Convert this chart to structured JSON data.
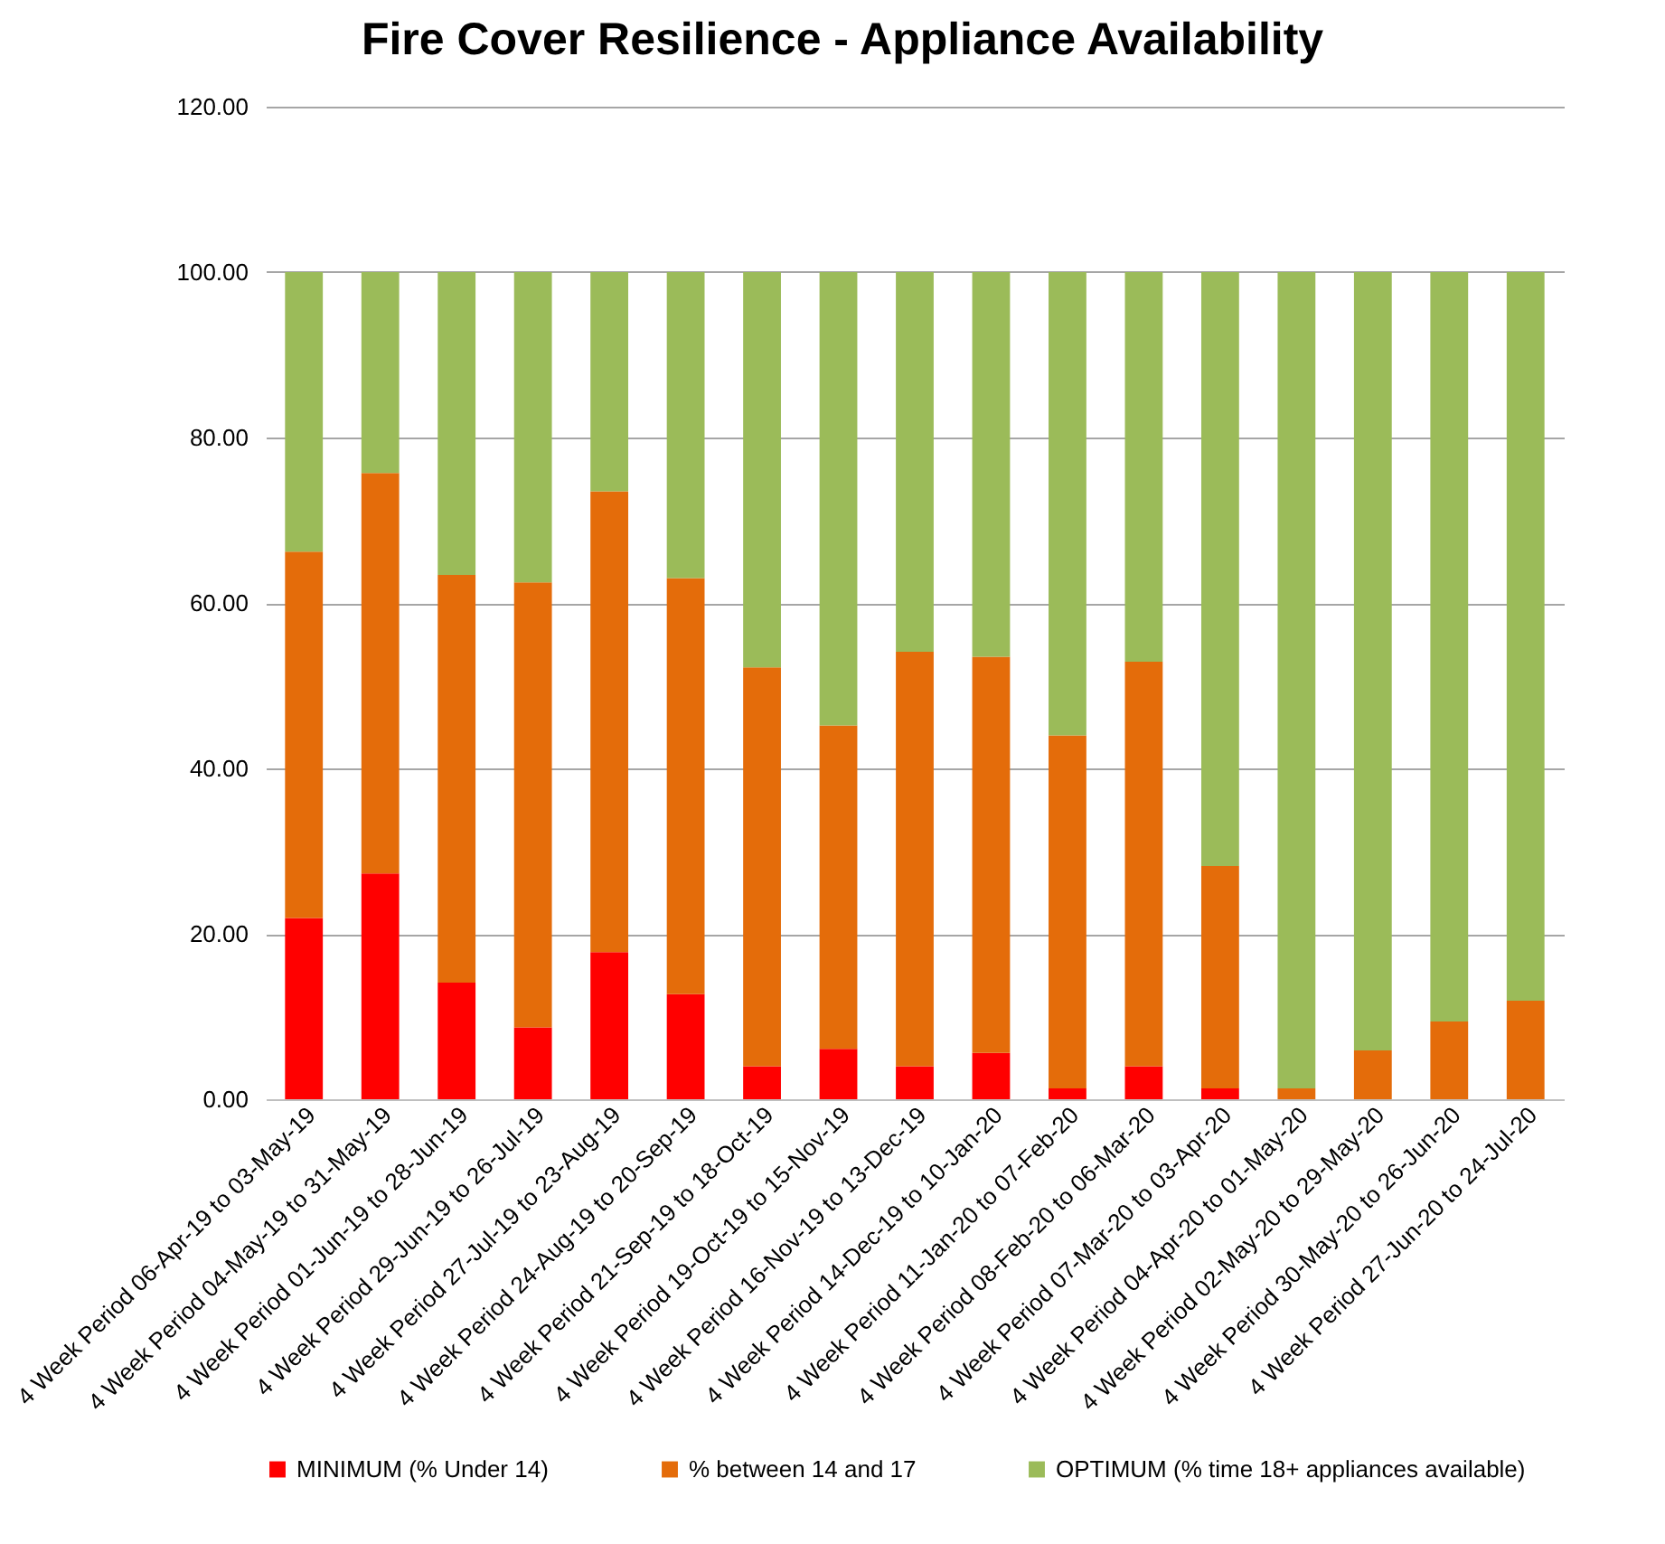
{
  "chart_data": {
    "type": "bar",
    "title": "Fire Cover Resilience - Appliance Availability",
    "stacked": true,
    "categories": [
      "4 Week Period  06-Apr-19 to 03-May-19",
      "4 Week Period  04-May-19 to 31-May-19",
      "4 Week Period  01-Jun-19 to 28-Jun-19",
      "4 Week Period  29-Jun-19 to 26-Jul-19",
      "4 Week Period  27-Jul-19 to 23-Aug-19",
      "4 Week Period  24-Aug-19 to 20-Sep-19",
      "4 Week Period  21-Sep-19 to 18-Oct-19",
      "4 Week Period  19-Oct-19 to 15-Nov-19",
      "4 Week Period  16-Nov-19 to 13-Dec-19",
      "4 Week Period  14-Dec-19 to 10-Jan-20",
      "4 Week Period  11-Jan-20 to 07-Feb-20",
      "4 Week Period  08-Feb-20 to 06-Mar-20",
      "4 Week Period  07-Mar-20 to 03-Apr-20",
      "4 Week Period  04-Apr-20 to 01-May-20",
      "4 Week Period  02-May-20 to 29-May-20",
      "4 Week Period  30-May-20 to 26-Jun-20",
      "4 Week Period  27-Jun-20 to 24-Jul-20"
    ],
    "series": [
      {
        "name": "MINIMUM (% Under 14)",
        "color": "#ff0000",
        "values": [
          21.9,
          27.3,
          14.1,
          8.7,
          17.8,
          12.7,
          4.0,
          6.1,
          4.0,
          5.6,
          1.3,
          4.0,
          1.3,
          0,
          0,
          0,
          0
        ]
      },
      {
        "name": "% between 14 and 17",
        "color": "#e46c0a",
        "values": [
          44.3,
          48.4,
          49.3,
          53.8,
          55.7,
          50.3,
          48.2,
          39.1,
          50.1,
          47.9,
          42.7,
          48.9,
          26.9,
          1.3,
          5.9,
          9.4,
          11.9
        ]
      },
      {
        "name": "OPTIMUM (% time 18+ appliances available)",
        "color": "#9bbb59",
        "values": [
          33.8,
          24.3,
          36.6,
          37.5,
          26.5,
          37.0,
          47.8,
          54.8,
          45.9,
          46.5,
          56.0,
          47.1,
          71.8,
          98.7,
          94.1,
          90.6,
          88.1
        ]
      }
    ],
    "ylim": [
      0,
      120
    ],
    "yticks": [
      {
        "value": 0,
        "label": "0.00"
      },
      {
        "value": 20,
        "label": "20.00"
      },
      {
        "value": 40,
        "label": "40.00"
      },
      {
        "value": 60,
        "label": "60.00"
      },
      {
        "value": 80,
        "label": "80.00"
      },
      {
        "value": 100,
        "label": "100.00"
      },
      {
        "value": 120,
        "label": "120.00"
      }
    ],
    "grid": "y",
    "legend": "bottom"
  }
}
